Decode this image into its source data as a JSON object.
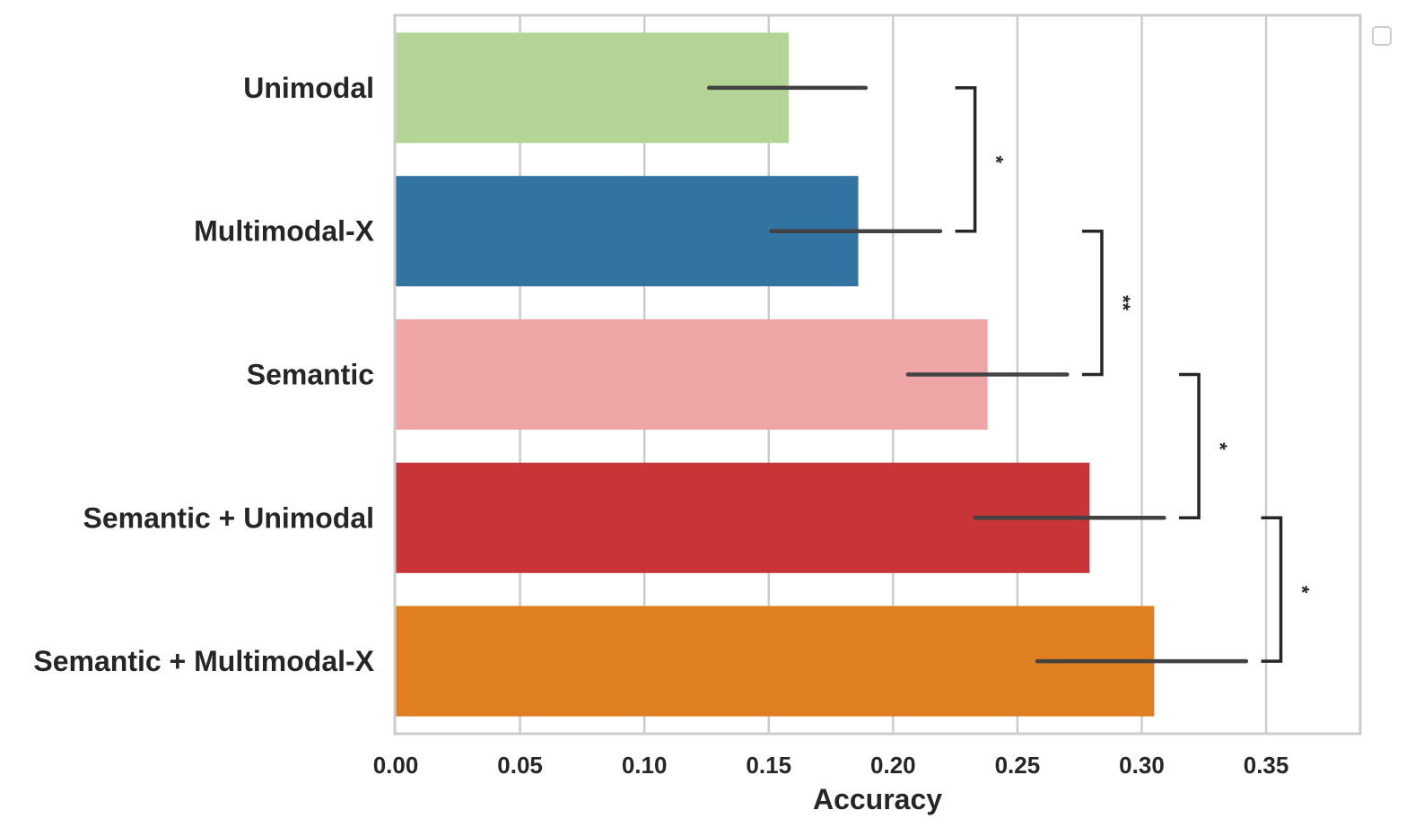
{
  "chart_data": {
    "type": "bar",
    "orientation": "horizontal",
    "categories": [
      "Unimodal",
      "Multimodal-X",
      "Semantic",
      "Semantic + Unimodal",
      "Semantic + Multimodal-X"
    ],
    "values": [
      0.158,
      0.186,
      0.238,
      0.279,
      0.305
    ],
    "error_low": [
      0.126,
      0.151,
      0.206,
      0.233,
      0.258
    ],
    "error_high": [
      0.189,
      0.219,
      0.27,
      0.309,
      0.342
    ],
    "colors": [
      "#b3d495",
      "#3174a1",
      "#efa5a6",
      "#c93437",
      "#e07e22"
    ],
    "xlabel": "Accuracy",
    "ylabel": "",
    "xlim": [
      0,
      0.3875
    ],
    "xticks": [
      0.0,
      0.05,
      0.1,
      0.15,
      0.2,
      0.25,
      0.3,
      0.35
    ],
    "xtick_labels": [
      "0.00",
      "0.05",
      "0.10",
      "0.15",
      "0.20",
      "0.25",
      "0.30",
      "0.35"
    ],
    "grid": "x",
    "legend": "top-right (empty)",
    "significance": [
      {
        "from": "Unimodal",
        "to": "Multimodal-X",
        "label": "*"
      },
      {
        "from": "Multimodal-X",
        "to": "Semantic",
        "label": "**"
      },
      {
        "from": "Semantic",
        "to": "Semantic + Unimodal",
        "label": "*"
      },
      {
        "from": "Semantic + Unimodal",
        "to": "Semantic + Multimodal-X",
        "label": "*"
      }
    ]
  }
}
